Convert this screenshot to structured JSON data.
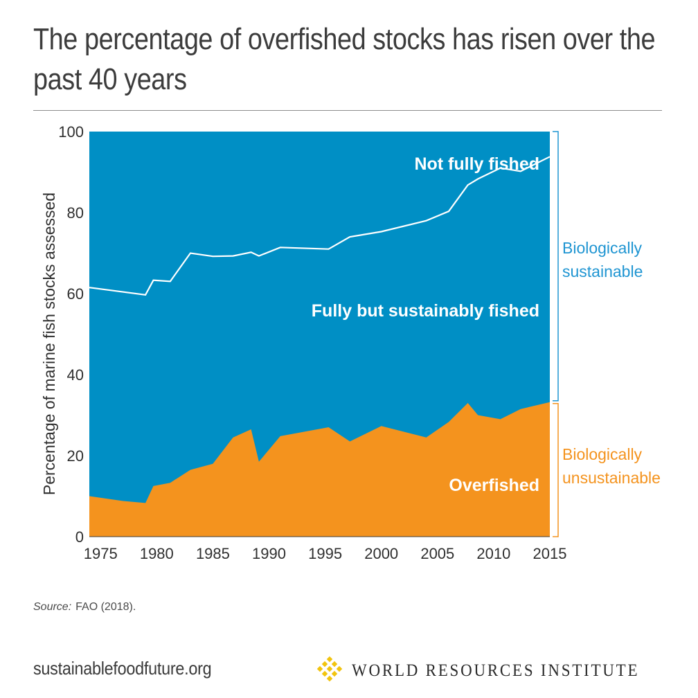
{
  "title": "The percentage of overfished stocks has risen over the past 40 years",
  "source": {
    "label": "Source:",
    "text": "FAO (2018)."
  },
  "footer": {
    "site": "sustainablefoodfuture.org",
    "org": "WORLD RESOURCES INSTITUTE",
    "logo_icon": "wri-lattice-logo-icon"
  },
  "colors": {
    "sustainable_blue": "#008fc5",
    "overfished_orange": "#f4931e",
    "line_white": "#ffffff",
    "bracket_blue": "#1f95d2",
    "bracket_orange": "#f4931e"
  },
  "chart_data": {
    "type": "area",
    "title": "The percentage of overfished stocks has risen over the past 40 years",
    "ylabel": "Percentage of marine fish stocks assessed",
    "xlabel": "",
    "xlim": [
      1974,
      2015
    ],
    "ylim": [
      0,
      100
    ],
    "x_ticks": [
      1975,
      1980,
      1985,
      1990,
      1995,
      2000,
      2005,
      2010,
      2015
    ],
    "y_ticks": [
      0,
      20,
      40,
      60,
      80,
      100
    ],
    "grid": false,
    "series": [
      {
        "name": "Overfished",
        "x": [
          1974,
          1977,
          1979,
          1979.7,
          1981.2,
          1983,
          1985,
          1986.8,
          1988.4,
          1989.1,
          1991,
          1995.3,
          1997.2,
          2000,
          2004,
          2006,
          2007.7,
          2008.6,
          2010.6,
          2012.4,
          2015
        ],
        "values": [
          10,
          8.8,
          8.3,
          12.5,
          13.3,
          16.5,
          18,
          24.5,
          26.5,
          18.5,
          24.8,
          27,
          23.5,
          27.3,
          24.5,
          28.3,
          33,
          30,
          29,
          31.5,
          33.2
        ]
      },
      {
        "name": "Fully but sustainably fished",
        "x": [
          1974,
          1979,
          1979.7,
          1981.2,
          1983,
          1985,
          1986.8,
          1988.4,
          1989.1,
          1991,
          1995.3,
          1997.2,
          2000,
          2004,
          2006,
          2007.7,
          2008.6,
          2010.6,
          2012.4,
          2015
        ],
        "values": [
          61.5,
          59.7,
          63.3,
          63,
          70,
          69.2,
          69.3,
          70.2,
          69.3,
          71.4,
          71,
          74,
          75.3,
          78,
          80.3,
          86.8,
          88.3,
          91,
          90.2,
          93.8
        ]
      },
      {
        "name": "Not fully fished",
        "x": [
          1974,
          2015
        ],
        "values": [
          100,
          100
        ]
      }
    ],
    "region_labels": [
      "Not fully fished",
      "Fully but sustainably fished",
      "Overfished"
    ],
    "bracket_labels": {
      "sustainable": [
        "Biologically",
        "sustainable"
      ],
      "unsustainable": [
        "Biologically",
        "unsustainable"
      ]
    }
  }
}
